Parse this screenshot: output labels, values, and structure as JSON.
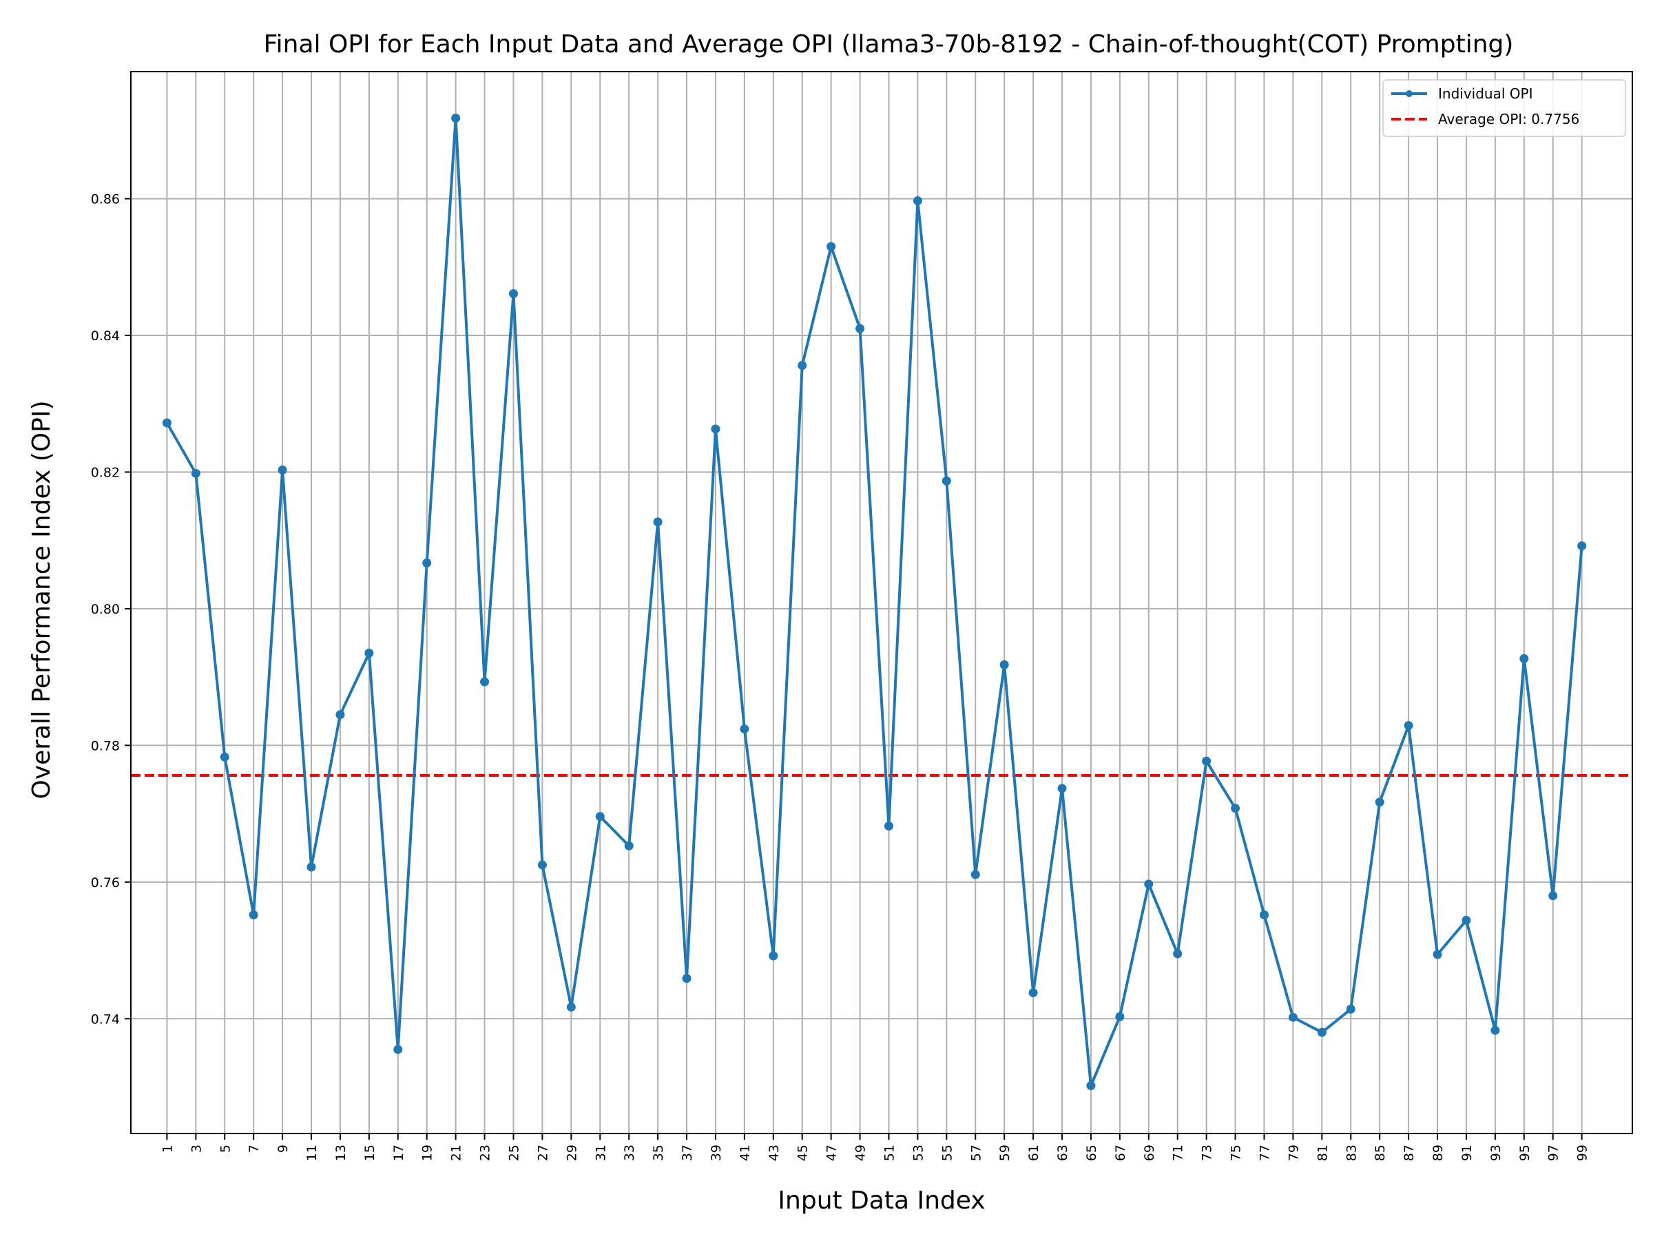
{
  "chart_data": {
    "type": "line",
    "title": "Final OPI for Each Input Data and Average OPI (llama3-70b-8192 - Chain-of-thought(COT) Prompting)",
    "xlabel": "Input Data Index",
    "ylabel": "Overall Performance Index (OPI)",
    "x_ticks": [
      1,
      3,
      5,
      7,
      9,
      11,
      13,
      15,
      17,
      19,
      21,
      23,
      25,
      27,
      29,
      31,
      33,
      35,
      37,
      39,
      41,
      43,
      45,
      47,
      49,
      51,
      53,
      55,
      57,
      59,
      61,
      63,
      65,
      67,
      69,
      71,
      73,
      75,
      77,
      79,
      81,
      83,
      85,
      87,
      89,
      91,
      93,
      95,
      97,
      99
    ],
    "y_ticks": [
      "0.74",
      "0.76",
      "0.78",
      "0.80",
      "0.82",
      "0.84",
      "0.86"
    ],
    "xlim": [
      -1.5,
      102.5
    ],
    "ylim": [
      0.7232,
      0.8786
    ],
    "grid": true,
    "legend_position": "top-right",
    "series": [
      {
        "name": "Individual OPI",
        "color": "#1f77b4",
        "style": "line-with-markers",
        "x": [
          1,
          3,
          5,
          7,
          9,
          11,
          13,
          15,
          17,
          19,
          21,
          23,
          25,
          27,
          29,
          31,
          33,
          35,
          37,
          39,
          41,
          43,
          45,
          47,
          49,
          51,
          53,
          55,
          57,
          59,
          61,
          63,
          65,
          67,
          69,
          71,
          73,
          75,
          77,
          79,
          81,
          83,
          85,
          87,
          89,
          91,
          93,
          95,
          97,
          99
        ],
        "values": [
          0.8272,
          0.8198,
          0.7783,
          0.7552,
          0.8203,
          0.7622,
          0.7845,
          0.7935,
          0.7355,
          0.8067,
          0.8718,
          0.7893,
          0.8461,
          0.7625,
          0.7417,
          0.7696,
          0.7653,
          0.8127,
          0.7459,
          0.8263,
          0.7824,
          0.7492,
          0.8356,
          0.853,
          0.841,
          0.7682,
          0.8597,
          0.8187,
          0.7611,
          0.7918,
          0.7438,
          0.7737,
          0.7302,
          0.7403,
          0.7597,
          0.7495,
          0.7777,
          0.7708,
          0.7552,
          0.7402,
          0.738,
          0.7414,
          0.7717,
          0.7829,
          0.7494,
          0.7544,
          0.7383,
          0.7927,
          0.758,
          0.8092
        ]
      }
    ],
    "reference_line": {
      "name": "Average OPI: 0.7756",
      "value": 0.7756,
      "color": "#ff0000",
      "style": "dashed"
    }
  }
}
